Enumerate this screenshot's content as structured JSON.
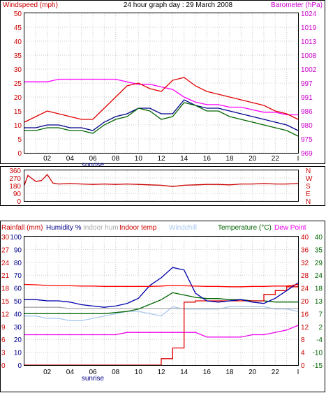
{
  "chart_data": [
    {
      "type": "line",
      "title": "24 hour graph day : 29 March 2008",
      "left_label": "Windspeed (mph)",
      "right_label": "Barometer (hPa)",
      "x_ticks": [
        "02",
        "04",
        "06",
        "08",
        "10",
        "12",
        "14",
        "16",
        "18",
        "20",
        "22",
        "I"
      ],
      "x_marker": "sunrise",
      "ylim_left": [
        0,
        50
      ],
      "y_ticks_left": [
        "0",
        "5",
        "10",
        "15",
        "20",
        "25",
        "30",
        "35",
        "40",
        "45",
        "50"
      ],
      "ylim_right": [
        969,
        1024
      ],
      "y_ticks_right": [
        "969",
        "975",
        "980",
        "986",
        "991",
        "997",
        "1002",
        "1008",
        "1013",
        "1019",
        "1024"
      ],
      "grid": true,
      "colors": {
        "gust": "#e00000",
        "average": "#006400",
        "direction_avg": "#00008b",
        "barometer": "#ff00ff"
      },
      "series": [
        {
          "x": [
            0,
            1,
            2,
            3,
            4,
            5,
            6,
            7,
            8,
            9,
            10,
            11,
            12,
            13,
            14,
            15,
            16,
            17,
            18,
            19,
            20,
            21,
            22,
            23,
            24
          ],
          "values": [
            11,
            13,
            15,
            14,
            13,
            12,
            12,
            16,
            20,
            24,
            25,
            23,
            22,
            26,
            27,
            24,
            22,
            21,
            20,
            19,
            18,
            17,
            15,
            14,
            12
          ]
        },
        {
          "x": [
            0,
            1,
            2,
            3,
            4,
            5,
            6,
            7,
            8,
            9,
            10,
            11,
            12,
            13,
            14,
            15,
            16,
            17,
            18,
            19,
            20,
            21,
            22,
            23,
            24
          ],
          "values": [
            8,
            8,
            9,
            9,
            8,
            8,
            7,
            10,
            12,
            13,
            16,
            15,
            12,
            13,
            18,
            17,
            15,
            15,
            13,
            12,
            11,
            10,
            9,
            8,
            6
          ]
        },
        {
          "x": [
            0,
            1,
            2,
            3,
            4,
            5,
            6,
            7,
            8,
            9,
            10,
            11,
            12,
            13,
            14,
            15,
            16,
            17,
            18,
            19,
            20,
            21,
            22,
            23,
            24
          ],
          "values": [
            9,
            9,
            10,
            10,
            9,
            9,
            8,
            11,
            13,
            14,
            16,
            16,
            14,
            14,
            19,
            17,
            16,
            16,
            15,
            14,
            13,
            12,
            11,
            10,
            8
          ]
        },
        {
          "x": [
            0,
            1,
            2,
            3,
            4,
            5,
            6,
            7,
            8,
            9,
            10,
            11,
            12,
            13,
            14,
            15,
            16,
            17,
            18,
            19,
            20,
            21,
            22,
            23,
            24
          ],
          "values": [
            997,
            997,
            997,
            998,
            998,
            998,
            998,
            998,
            998,
            997,
            996,
            996,
            995,
            994,
            991,
            989,
            988,
            988,
            987,
            987,
            986,
            985,
            985,
            984,
            984
          ]
        }
      ]
    },
    {
      "type": "line",
      "ylim_left": [
        0,
        360
      ],
      "y_ticks_left": [
        "0",
        "90",
        "180",
        "270",
        "360"
      ],
      "y_ticks_right": [
        "N",
        "E",
        "S",
        "W",
        "N"
      ],
      "color": "#cc0000",
      "series": [
        {
          "x": [
            0,
            0.3,
            0.6,
            1,
            1.5,
            2,
            2.5,
            3,
            4,
            5,
            6,
            7,
            8,
            9,
            10,
            11,
            12,
            13,
            14,
            15,
            16,
            17,
            18,
            19,
            20,
            21,
            22,
            23,
            24
          ],
          "values": [
            190,
            300,
            270,
            230,
            240,
            310,
            210,
            200,
            205,
            200,
            195,
            200,
            195,
            200,
            195,
            190,
            185,
            170,
            185,
            190,
            195,
            195,
            190,
            200,
            200,
            205,
            200,
            200,
            205
          ]
        }
      ]
    },
    {
      "type": "line",
      "labels": {
        "rainfall": "Rainfall (mm)",
        "humidity": "Humidity %",
        "indoor_hum": "Indoor hum",
        "indoor_temp": "Indoor temp",
        "windchill": "Windchill",
        "temperature": "Temperature (°C)",
        "dew_point": "Dew Point"
      },
      "x_ticks": [
        "02",
        "04",
        "06",
        "08",
        "10",
        "12",
        "14",
        "16",
        "18",
        "20",
        "22",
        "I"
      ],
      "x_marker": "sunrise",
      "y_ticks_rain": [
        "0",
        "3",
        "6",
        "9",
        "12",
        "15",
        "18",
        "21",
        "24",
        "27",
        "30"
      ],
      "y_ticks_left": [
        "0",
        "10",
        "20",
        "30",
        "40",
        "50",
        "60",
        "70",
        "80",
        "90",
        "100"
      ],
      "y_ticks_indoor": [
        "0",
        "4",
        "8",
        "12",
        "16",
        "20",
        "24",
        "28",
        "32",
        "36",
        "40"
      ],
      "y_ticks_right": [
        "-15",
        "-10",
        "-4",
        "2",
        "7",
        "13",
        "18",
        "24",
        "29",
        "35",
        "40"
      ],
      "ylim_left": [
        0,
        100
      ],
      "ylim_right": [
        -15,
        40
      ],
      "colors": {
        "rainfall": "#e00000",
        "humidity": "#0000aa",
        "indoor_hum": "#aaaaaa",
        "indoor_temp": "#ff0000",
        "windchill": "#a8c8f0",
        "temperature": "#006400",
        "dew_point": "#ee00ee"
      },
      "series": [
        {
          "x": [
            0,
            1,
            2,
            3,
            4,
            5,
            6,
            7,
            8,
            9,
            10,
            11,
            12,
            13,
            14,
            15,
            16,
            17,
            18,
            19,
            20,
            21,
            22,
            23,
            24
          ],
          "values": [
            0,
            0,
            0,
            0,
            0,
            0,
            0,
            0,
            0,
            0,
            0,
            0,
            1.5,
            4,
            14.7,
            15,
            15,
            15,
            15,
            15,
            15,
            16.5,
            17.4,
            18.3,
            18.6
          ]
        },
        {
          "x": [
            0,
            1,
            2,
            3,
            4,
            5,
            6,
            7,
            8,
            9,
            10,
            11,
            12,
            13,
            14,
            15,
            16,
            17,
            18,
            19,
            20,
            21,
            22,
            23,
            24
          ],
          "values": [
            51,
            51,
            50,
            50,
            49,
            47,
            46,
            45,
            46,
            48,
            52,
            62,
            68,
            76,
            74,
            56,
            50,
            49,
            50,
            51,
            49,
            48,
            52,
            58,
            64
          ]
        },
        {
          "x": [
            0,
            1,
            2,
            3,
            4,
            5,
            6,
            7,
            8,
            9,
            10,
            11,
            12,
            13,
            14,
            15,
            16,
            17,
            18,
            19,
            20,
            21,
            22,
            23,
            24
          ],
          "values": [
            45,
            45,
            45,
            45,
            44,
            44,
            44,
            44,
            44,
            44,
            44,
            44,
            44,
            44,
            44,
            44,
            44,
            44,
            44,
            44,
            44,
            44,
            44,
            44,
            44
          ]
        },
        {
          "x": [
            0,
            1,
            2,
            3,
            4,
            5,
            6,
            7,
            8,
            9,
            10,
            11,
            12,
            13,
            14,
            15,
            16,
            17,
            18,
            19,
            20,
            21,
            22,
            23,
            24
          ],
          "values": [
            25.1,
            25,
            24.8,
            24.7,
            24.7,
            24.6,
            24.6,
            24.5,
            24.5,
            24.5,
            24.5,
            24.5,
            24.6,
            24.8,
            24.7,
            24.6,
            24.5,
            24.5,
            24.4,
            24.4,
            24.5,
            24.5,
            24.6,
            24.6,
            25.1
          ]
        },
        {
          "x": [
            0,
            1,
            2,
            3,
            4,
            5,
            6,
            7,
            8,
            9,
            10,
            11,
            12,
            13,
            14,
            15,
            16,
            17,
            18,
            19,
            20,
            21,
            22,
            23,
            24
          ],
          "values": [
            6,
            6,
            5,
            5,
            4,
            4,
            5,
            6,
            7,
            8,
            8,
            7,
            6,
            10,
            9,
            9,
            9,
            9,
            10,
            10,
            10,
            10,
            9,
            9,
            8
          ]
        },
        {
          "x": [
            0,
            1,
            2,
            3,
            4,
            5,
            6,
            7,
            8,
            9,
            10,
            11,
            12,
            13,
            14,
            15,
            16,
            17,
            18,
            19,
            20,
            21,
            22,
            23,
            24
          ],
          "values": [
            7,
            7,
            7,
            7,
            7,
            7,
            7,
            7,
            7.5,
            8,
            9,
            11,
            13,
            16,
            15,
            14,
            13.5,
            13.5,
            13,
            13,
            12.5,
            12.5,
            12,
            12,
            12
          ]
        },
        {
          "x": [
            0,
            1,
            2,
            3,
            4,
            5,
            6,
            7,
            8,
            9,
            10,
            11,
            12,
            13,
            14,
            15,
            16,
            17,
            18,
            19,
            20,
            21,
            22,
            23,
            24
          ],
          "values": [
            -2,
            -2,
            -2,
            -2,
            -2,
            -2,
            -2,
            -2,
            -2,
            -1,
            -1,
            -1,
            -1,
            -1,
            -1,
            -1,
            -3,
            -3,
            -3,
            -3,
            -2,
            -2,
            -1,
            0,
            2
          ]
        }
      ]
    }
  ]
}
